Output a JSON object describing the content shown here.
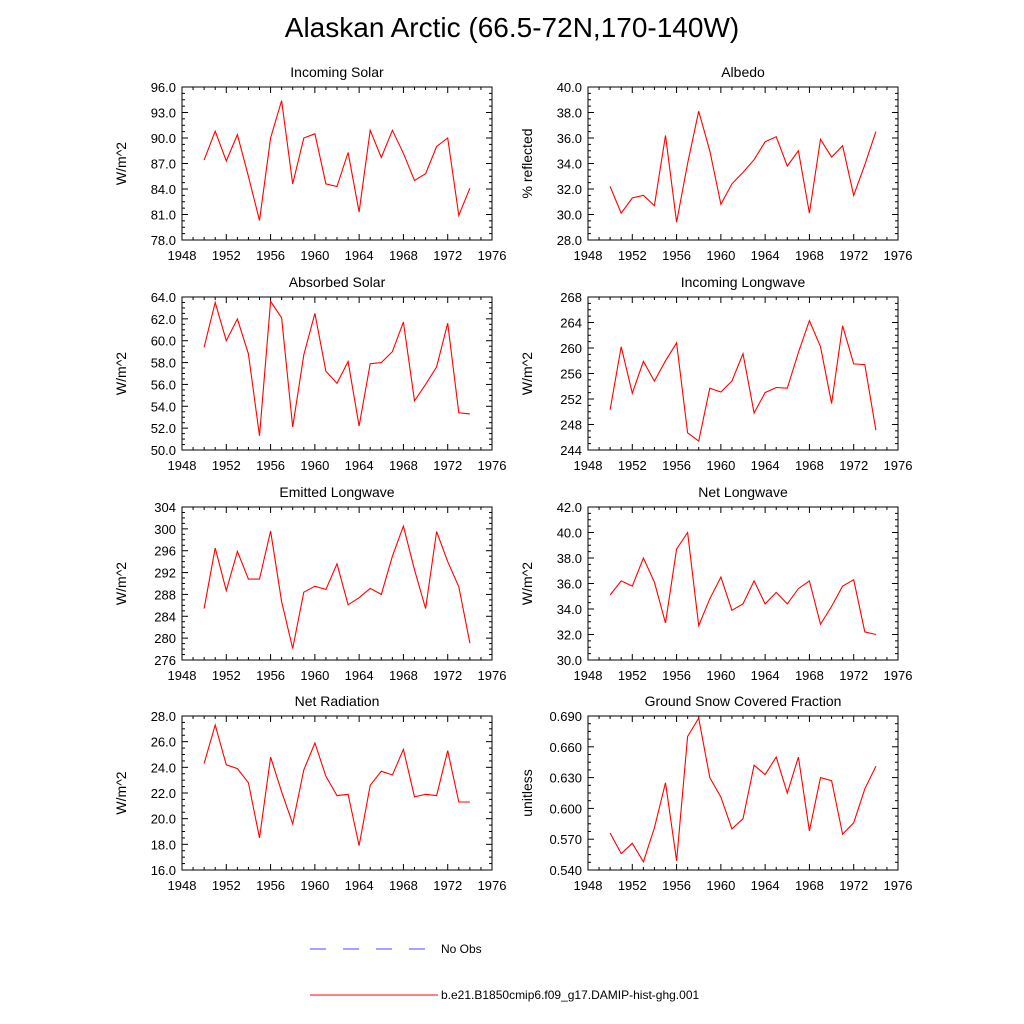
{
  "figure": {
    "title": "Alaskan Arctic (66.5-72N,170-140W)"
  },
  "legend": [
    {
      "label": "No Obs",
      "color": "#4a4aff",
      "style": "dashed"
    },
    {
      "label": "b.e21.B1850cmip6.f09_g17.DAMIP-hist-ghg.001",
      "color": "#ff0000",
      "style": "solid"
    }
  ],
  "chart_data": [
    {
      "type": "line",
      "title": "Incoming Solar",
      "ylabel": "W/m^2",
      "xlim": [
        1948,
        1976
      ],
      "ylim": [
        78.0,
        96.0
      ],
      "xticks": [
        "1948",
        "1952",
        "1956",
        "1960",
        "1964",
        "1968",
        "1972",
        "1976"
      ],
      "yticks": [
        "78.0",
        "81.0",
        "84.0",
        "87.0",
        "90.0",
        "93.0",
        "96.0"
      ],
      "x": [
        1950,
        1951,
        1952,
        1953,
        1954,
        1955,
        1956,
        1957,
        1958,
        1959,
        1960,
        1961,
        1962,
        1963,
        1964,
        1965,
        1966,
        1967,
        1968,
        1969,
        1970,
        1971,
        1972,
        1973,
        1974
      ],
      "series": [
        {
          "color": "#ff0000",
          "values": [
            87.4,
            90.8,
            87.3,
            90.4,
            85.5,
            80.3,
            90.0,
            94.4,
            84.6,
            90.0,
            90.5,
            84.6,
            84.3,
            88.3,
            81.3,
            90.9,
            87.7,
            90.9,
            88.2,
            85.0,
            85.8,
            89.0,
            90.0,
            80.9,
            84.1
          ]
        }
      ]
    },
    {
      "type": "line",
      "title": "Albedo",
      "ylabel": "% reflected",
      "xlim": [
        1948,
        1976
      ],
      "ylim": [
        28.0,
        40.0
      ],
      "xticks": [
        "1948",
        "1952",
        "1956",
        "1960",
        "1964",
        "1968",
        "1972",
        "1976"
      ],
      "yticks": [
        "28.0",
        "30.0",
        "32.0",
        "34.0",
        "36.0",
        "38.0",
        "40.0"
      ],
      "x": [
        1950,
        1951,
        1952,
        1953,
        1954,
        1955,
        1956,
        1957,
        1958,
        1959,
        1960,
        1961,
        1962,
        1963,
        1964,
        1965,
        1966,
        1967,
        1968,
        1969,
        1970,
        1971,
        1972,
        1973,
        1974
      ],
      "series": [
        {
          "color": "#ff0000",
          "values": [
            32.2,
            30.1,
            31.3,
            31.5,
            30.7,
            36.2,
            29.4,
            34.0,
            38.1,
            35.0,
            30.8,
            32.4,
            33.3,
            34.3,
            35.7,
            36.1,
            33.8,
            35.0,
            30.1,
            35.9,
            34.5,
            35.4,
            31.5,
            33.9,
            36.5
          ]
        }
      ]
    },
    {
      "type": "line",
      "title": "Absorbed Solar",
      "ylabel": "W/m^2",
      "xlim": [
        1948,
        1976
      ],
      "ylim": [
        50.0,
        64.0
      ],
      "xticks": [
        "1948",
        "1952",
        "1956",
        "1960",
        "1964",
        "1968",
        "1972",
        "1976"
      ],
      "yticks": [
        "50.0",
        "52.0",
        "54.0",
        "56.0",
        "58.0",
        "60.0",
        "62.0",
        "64.0"
      ],
      "x": [
        1950,
        1951,
        1952,
        1953,
        1954,
        1955,
        1956,
        1957,
        1958,
        1959,
        1960,
        1961,
        1962,
        1963,
        1964,
        1965,
        1966,
        1967,
        1968,
        1969,
        1970,
        1971,
        1972,
        1973,
        1974
      ],
      "series": [
        {
          "color": "#ff0000",
          "values": [
            59.4,
            63.5,
            60.0,
            62.0,
            58.8,
            51.3,
            63.6,
            62.1,
            52.1,
            58.7,
            62.5,
            57.2,
            56.1,
            58.1,
            52.2,
            57.9,
            58.0,
            59.0,
            61.7,
            54.5,
            56.0,
            57.6,
            61.6,
            53.4,
            53.3
          ]
        }
      ]
    },
    {
      "type": "line",
      "title": "Incoming Longwave",
      "ylabel": "W/m^2",
      "xlim": [
        1948,
        1976
      ],
      "ylim": [
        244,
        268
      ],
      "xticks": [
        "1948",
        "1952",
        "1956",
        "1960",
        "1964",
        "1968",
        "1972",
        "1976"
      ],
      "yticks": [
        "244",
        "248",
        "252",
        "256",
        "260",
        "264",
        "268"
      ],
      "x": [
        1950,
        1951,
        1952,
        1953,
        1954,
        1955,
        1956,
        1957,
        1958,
        1959,
        1960,
        1961,
        1962,
        1963,
        1964,
        1965,
        1966,
        1967,
        1968,
        1969,
        1970,
        1971,
        1972,
        1973,
        1974
      ],
      "series": [
        {
          "color": "#ff0000",
          "values": [
            250.3,
            260.2,
            252.9,
            257.9,
            254.8,
            258.0,
            260.8,
            246.7,
            245.4,
            253.7,
            253.1,
            254.8,
            259.1,
            249.8,
            253.0,
            253.8,
            253.7,
            259.3,
            264.3,
            260.2,
            251.3,
            263.5,
            257.5,
            257.4,
            247.1
          ]
        }
      ]
    },
    {
      "type": "line",
      "title": "Emitted Longwave",
      "ylabel": "W/m^2",
      "xlim": [
        1948,
        1976
      ],
      "ylim": [
        276,
        304
      ],
      "xticks": [
        "1948",
        "1952",
        "1956",
        "1960",
        "1964",
        "1968",
        "1972",
        "1976"
      ],
      "yticks": [
        "276",
        "280",
        "284",
        "288",
        "292",
        "296",
        "300",
        "304"
      ],
      "x": [
        1950,
        1951,
        1952,
        1953,
        1954,
        1955,
        1956,
        1957,
        1958,
        1959,
        1960,
        1961,
        1962,
        1963,
        1964,
        1965,
        1966,
        1967,
        1968,
        1969,
        1970,
        1971,
        1972,
        1973,
        1974
      ],
      "series": [
        {
          "color": "#ff0000",
          "values": [
            285.4,
            296.5,
            288.7,
            295.9,
            290.8,
            290.8,
            299.6,
            286.7,
            278.1,
            288.4,
            289.5,
            288.9,
            293.6,
            286.1,
            287.4,
            289.1,
            288.0,
            295.0,
            300.5,
            292.5,
            285.4,
            299.5,
            294.0,
            289.4,
            279.1
          ]
        }
      ]
    },
    {
      "type": "line",
      "title": "Net Longwave",
      "ylabel": "W/m^2",
      "xlim": [
        1948,
        1976
      ],
      "ylim": [
        30.0,
        42.0
      ],
      "xticks": [
        "1948",
        "1952",
        "1956",
        "1960",
        "1964",
        "1968",
        "1972",
        "1976"
      ],
      "yticks": [
        "30.0",
        "32.0",
        "34.0",
        "36.0",
        "38.0",
        "40.0",
        "42.0"
      ],
      "x": [
        1950,
        1951,
        1952,
        1953,
        1954,
        1955,
        1956,
        1957,
        1958,
        1959,
        1960,
        1961,
        1962,
        1963,
        1964,
        1965,
        1966,
        1967,
        1968,
        1969,
        1970,
        1971,
        1972,
        1973,
        1974
      ],
      "series": [
        {
          "color": "#ff0000",
          "values": [
            35.1,
            36.2,
            35.8,
            38.0,
            36.1,
            32.9,
            38.7,
            40.0,
            32.7,
            34.8,
            36.5,
            33.9,
            34.4,
            36.2,
            34.4,
            35.3,
            34.4,
            35.6,
            36.2,
            32.8,
            34.2,
            35.8,
            36.3,
            32.2,
            32.0
          ]
        }
      ]
    },
    {
      "type": "line",
      "title": "Net Radiation",
      "ylabel": "W/m^2",
      "xlim": [
        1948,
        1976
      ],
      "ylim": [
        16.0,
        28.0
      ],
      "xticks": [
        "1948",
        "1952",
        "1956",
        "1960",
        "1964",
        "1968",
        "1972",
        "1976"
      ],
      "yticks": [
        "16.0",
        "18.0",
        "20.0",
        "22.0",
        "24.0",
        "26.0",
        "28.0"
      ],
      "x": [
        1950,
        1951,
        1952,
        1953,
        1954,
        1955,
        1956,
        1957,
        1958,
        1959,
        1960,
        1961,
        1962,
        1963,
        1964,
        1965,
        1966,
        1967,
        1968,
        1969,
        1970,
        1971,
        1972,
        1973,
        1974
      ],
      "series": [
        {
          "color": "#ff0000",
          "values": [
            24.3,
            27.3,
            24.2,
            23.9,
            22.8,
            18.5,
            24.8,
            22.1,
            19.6,
            23.8,
            25.9,
            23.3,
            21.8,
            21.9,
            17.9,
            22.6,
            23.7,
            23.4,
            25.4,
            21.7,
            21.9,
            21.8,
            25.3,
            21.3,
            21.3
          ]
        }
      ]
    },
    {
      "type": "line",
      "title": "Ground Snow Covered Fraction",
      "ylabel": "unitless",
      "xlim": [
        1948,
        1976
      ],
      "ylim": [
        0.54,
        0.69
      ],
      "xticks": [
        "1948",
        "1952",
        "1956",
        "1960",
        "1964",
        "1968",
        "1972",
        "1976"
      ],
      "yticks": [
        "0.540",
        "0.570",
        "0.600",
        "0.630",
        "0.660",
        "0.690"
      ],
      "x": [
        1950,
        1951,
        1952,
        1953,
        1954,
        1955,
        1956,
        1957,
        1958,
        1959,
        1960,
        1961,
        1962,
        1963,
        1964,
        1965,
        1966,
        1967,
        1968,
        1969,
        1970,
        1971,
        1972,
        1973,
        1974
      ],
      "series": [
        {
          "color": "#ff0000",
          "values": [
            0.576,
            0.556,
            0.566,
            0.548,
            0.581,
            0.625,
            0.549,
            0.67,
            0.688,
            0.63,
            0.611,
            0.58,
            0.59,
            0.642,
            0.633,
            0.65,
            0.615,
            0.65,
            0.578,
            0.63,
            0.627,
            0.575,
            0.586,
            0.619,
            0.641
          ]
        }
      ]
    }
  ]
}
